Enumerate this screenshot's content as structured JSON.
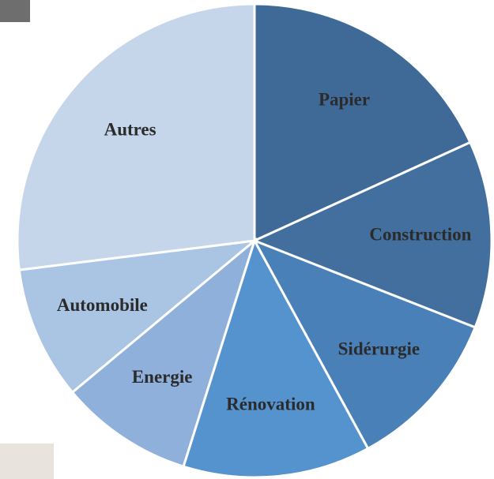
{
  "chart_data": {
    "type": "pie",
    "categories": [
      "Papier",
      "Construction",
      "Sidérurgie",
      "Rénovation",
      "Energie",
      "Automobile",
      "Autres"
    ],
    "values": [
      18.2,
      12.8,
      11.1,
      12.8,
      9.1,
      9.1,
      27
    ],
    "colors": [
      "#3f6a98",
      "#426f9e",
      "#4a80b8",
      "#5593cf",
      "#8eb0db",
      "#aac4e3",
      "#c5d5ea"
    ]
  }
}
